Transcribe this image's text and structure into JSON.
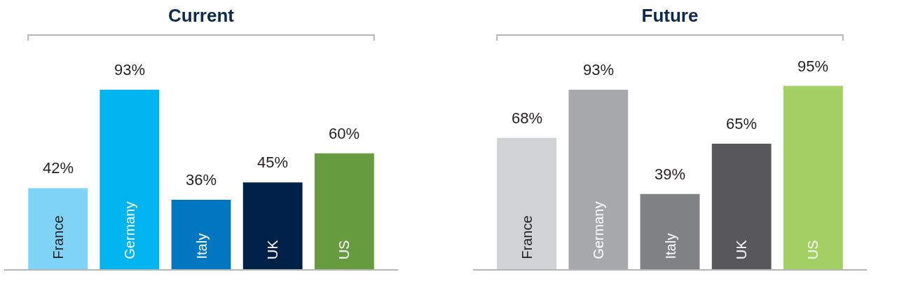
{
  "chart_data": [
    {
      "type": "bar",
      "title": "Current",
      "categories": [
        "France",
        "Germany",
        "Italy",
        "UK",
        "US"
      ],
      "values": [
        42,
        93,
        36,
        45,
        60
      ],
      "colors": [
        "#7fd3f7",
        "#00b4ef",
        "#0077c0",
        "#002147",
        "#669c3f"
      ],
      "value_labels": [
        "42%",
        "93%",
        "36%",
        "45%",
        "60%"
      ]
    },
    {
      "type": "bar",
      "title": "Future",
      "categories": [
        "France",
        "Germany",
        "Italy",
        "UK",
        "US"
      ],
      "values": [
        68,
        93,
        39,
        65,
        95
      ],
      "colors": [
        "#d1d2d4",
        "#a7a8ac",
        "#808184",
        "#58585b",
        "#a2d063"
      ],
      "value_labels": [
        "68%",
        "93%",
        "39%",
        "65%",
        "95%"
      ]
    }
  ]
}
